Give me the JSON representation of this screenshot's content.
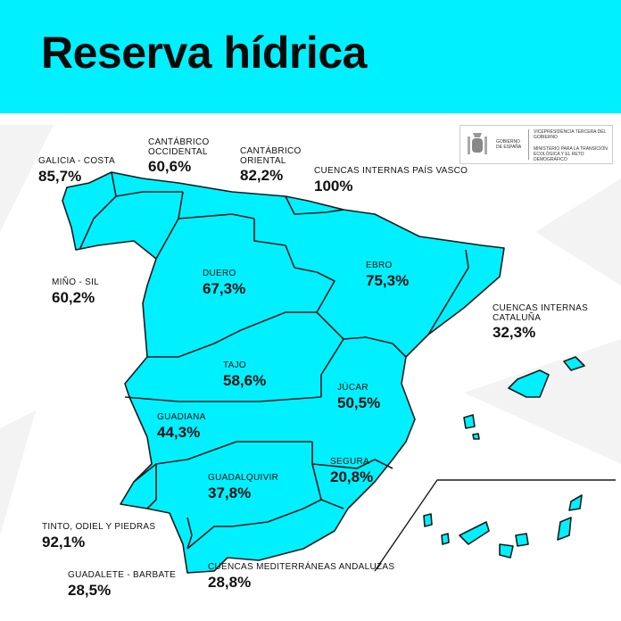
{
  "title": "Reserva hídrica",
  "colors": {
    "accent": "#00f0ff",
    "border": "#1a1a1a",
    "background": "#ffffff"
  },
  "logo": {
    "left": "GOBIERNO DE ESPAÑA",
    "line1": "VICEPRESIDENCIA TERCERA DEL GOBIERNO",
    "line2": "MINISTERIO PARA LA TRANSICIÓN ECOLÓGICA Y EL RETO DEMOGRÁFICO"
  },
  "basins": [
    {
      "name": "GALICIA - COSTA",
      "value": "85,7%"
    },
    {
      "name": "CANTÁBRICO OCCIDENTAL",
      "value": "60,6%"
    },
    {
      "name": "CANTÁBRICO ORIENTAL",
      "value": "82,2%"
    },
    {
      "name": "CUENCAS INTERNAS PAÍS VASCO",
      "value": "100%"
    },
    {
      "name": "MIÑO - SIL",
      "value": "60,2%"
    },
    {
      "name": "DUERO",
      "value": "67,3%"
    },
    {
      "name": "EBRO",
      "value": "75,3%"
    },
    {
      "name": "CUENCAS INTERNAS CATALUÑA",
      "value": "32,3%"
    },
    {
      "name": "TAJO",
      "value": "58,6%"
    },
    {
      "name": "JÚCAR",
      "value": "50,5%"
    },
    {
      "name": "GUADIANA",
      "value": "44,3%"
    },
    {
      "name": "SEGURA",
      "value": "20,8%"
    },
    {
      "name": "GUADALQUIVIR",
      "value": "37,8%"
    },
    {
      "name": "TINTO, ODIEL Y PIEDRAS",
      "value": "92,1%"
    },
    {
      "name": "GUADALETE - BARBATE",
      "value": "28,5%"
    },
    {
      "name": "CUENCAS MEDITERRÁNEAS ANDALUZAS",
      "value": "28,8%"
    }
  ]
}
